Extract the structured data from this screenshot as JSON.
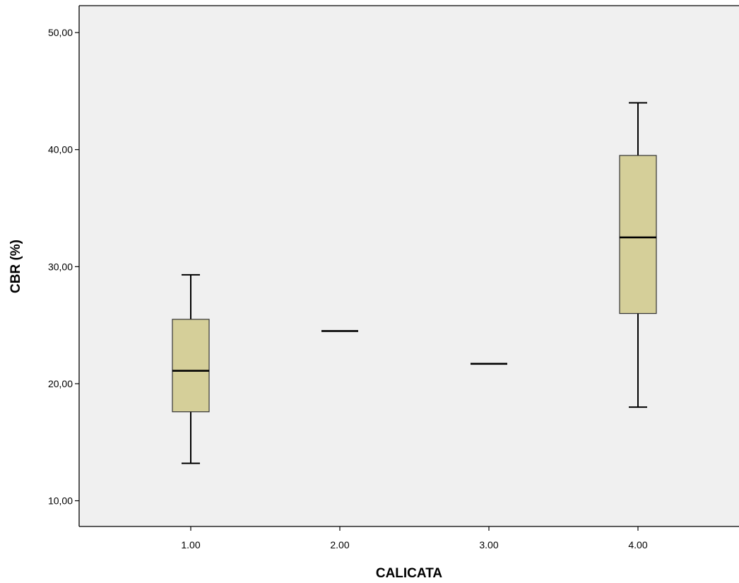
{
  "chart_data": {
    "type": "boxplot",
    "title": "",
    "xlabel": "CALICATA",
    "ylabel": "CBR (%)",
    "ylim": [
      7.8,
      52.3
    ],
    "yticks": [
      10,
      20,
      30,
      40,
      50
    ],
    "ytick_labels": [
      "10,00",
      "20,00",
      "30,00",
      "40,00",
      "50,00"
    ],
    "categories": [
      "1.00",
      "2.00",
      "3.00",
      "4.00"
    ],
    "boxes": [
      {
        "category": "1.00",
        "min": 13.2,
        "q1": 17.6,
        "median": 21.1,
        "q3": 25.5,
        "max": 29.3
      },
      {
        "category": "2.00",
        "min": 24.5,
        "q1": 24.5,
        "median": 24.5,
        "q3": 24.5,
        "max": 24.5
      },
      {
        "category": "3.00",
        "min": 21.7,
        "q1": 21.7,
        "median": 21.7,
        "q3": 21.7,
        "max": 21.7
      },
      {
        "category": "4.00",
        "min": 18.0,
        "q1": 26.0,
        "median": 32.5,
        "q3": 39.5,
        "max": 44.0
      }
    ],
    "box_color": "#d5cf99",
    "background_color": "#f0f0f0",
    "grid": false,
    "legend": "none"
  }
}
